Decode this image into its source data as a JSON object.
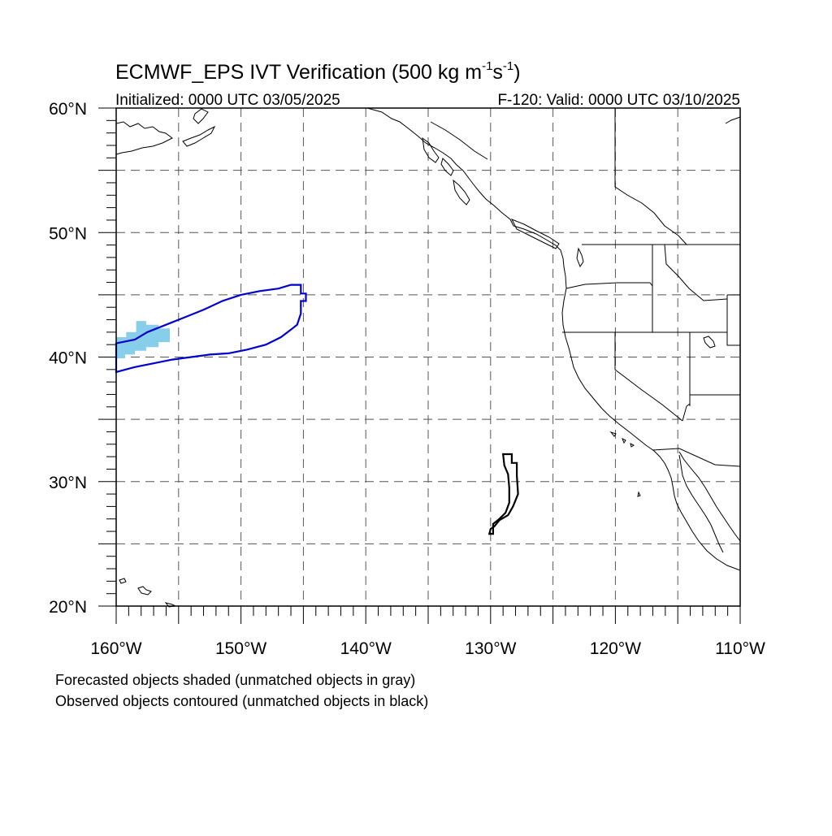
{
  "title": {
    "main": "ECMWF_EPS IVT Verification (500 kg m",
    "sup1": "-1",
    "mid": "s",
    "sup2": "-1",
    "end": ")"
  },
  "subtitle": {
    "left": "Initialized: 0000 UTC 03/05/2025",
    "right": "F-120: Valid: 0000 UTC 03/10/2025"
  },
  "footnotes": {
    "line1": "Forecasted objects shaded (unmatched objects in gray)",
    "line2": "Observed objects contoured (unmatched objects in black)"
  },
  "map": {
    "lon_range": [
      -160,
      -110
    ],
    "lat_range": [
      20,
      60
    ],
    "gridlines_lon": [
      -155,
      -150,
      -145,
      -140,
      -135,
      -130,
      -125,
      -120,
      -115
    ],
    "gridlines_lat": [
      25,
      30,
      35,
      40,
      45,
      50,
      55
    ],
    "x_ticks": [
      {
        "lon": -160,
        "label": "160°W"
      },
      {
        "lon": -150,
        "label": "150°W"
      },
      {
        "lon": -140,
        "label": "140°W"
      },
      {
        "lon": -130,
        "label": "130°W"
      },
      {
        "lon": -120,
        "label": "120°W"
      },
      {
        "lon": -110,
        "label": "110°W"
      }
    ],
    "y_ticks": [
      {
        "lat": 60,
        "label": "60°N"
      },
      {
        "lat": 50,
        "label": "50°N"
      },
      {
        "lat": 40,
        "label": "40°N"
      },
      {
        "lat": 30,
        "label": "30°N"
      },
      {
        "lat": 20,
        "label": "20°N"
      }
    ],
    "colors": {
      "forecast_matched_fill": "#87ceeb",
      "observed_matched_contour": "#0000cd",
      "observed_unmatched_contour": "#000000",
      "coastline": "#000000",
      "grid": "#555555"
    }
  },
  "objects": {
    "forecast_matched": {
      "color": "#87ceeb",
      "polygon": [
        [
          -160,
          39.9
        ],
        [
          -159.3,
          39.9
        ],
        [
          -159.3,
          40.2
        ],
        [
          -158.5,
          40.2
        ],
        [
          -158.5,
          40.5
        ],
        [
          -157.6,
          40.5
        ],
        [
          -157.6,
          40.8
        ],
        [
          -156.6,
          40.8
        ],
        [
          -156.6,
          41.2
        ],
        [
          -155.7,
          41.2
        ],
        [
          -155.7,
          42.3
        ],
        [
          -156.6,
          42.3
        ],
        [
          -156.6,
          42.6
        ],
        [
          -157.6,
          42.6
        ],
        [
          -157.6,
          42.9
        ],
        [
          -158.4,
          42.9
        ],
        [
          -158.4,
          42.0
        ],
        [
          -159.2,
          42.0
        ],
        [
          -159.2,
          41.6
        ],
        [
          -160,
          41.6
        ]
      ]
    },
    "observed_matched": {
      "color": "#0000cd",
      "polygon": [
        [
          -160,
          41.1
        ],
        [
          -158.5,
          41.4
        ],
        [
          -157.5,
          42.0
        ],
        [
          -156.0,
          42.6
        ],
        [
          -154.5,
          43.2
        ],
        [
          -153.0,
          43.8
        ],
        [
          -151.5,
          44.5
        ],
        [
          -150.0,
          45.0
        ],
        [
          -148.5,
          45.3
        ],
        [
          -147.0,
          45.5
        ],
        [
          -146.0,
          45.8
        ],
        [
          -145.2,
          45.8
        ],
        [
          -145.2,
          45.1
        ],
        [
          -144.8,
          45.1
        ],
        [
          -144.8,
          44.5
        ],
        [
          -145.2,
          44.5
        ],
        [
          -145.2,
          43.5
        ],
        [
          -145.5,
          42.6
        ],
        [
          -146.0,
          42.2
        ],
        [
          -146.8,
          41.6
        ],
        [
          -148.0,
          41.0
        ],
        [
          -149.5,
          40.6
        ],
        [
          -151.0,
          40.3
        ],
        [
          -152.5,
          40.2
        ],
        [
          -154.0,
          40.0
        ],
        [
          -155.5,
          39.8
        ],
        [
          -157.0,
          39.5
        ],
        [
          -158.5,
          39.2
        ],
        [
          -160,
          38.8
        ]
      ]
    },
    "observed_unmatched": {
      "color": "#000000",
      "polygon": [
        [
          -129.0,
          32.2
        ],
        [
          -128.3,
          32.2
        ],
        [
          -128.3,
          31.5
        ],
        [
          -127.9,
          31.5
        ],
        [
          -127.9,
          30.5
        ],
        [
          -127.8,
          29.0
        ],
        [
          -128.2,
          28.0
        ],
        [
          -128.6,
          27.3
        ],
        [
          -129.3,
          26.9
        ],
        [
          -129.7,
          26.4
        ],
        [
          -130.0,
          26.2
        ],
        [
          -130.1,
          25.8
        ],
        [
          -129.8,
          25.8
        ],
        [
          -129.8,
          26.6
        ],
        [
          -129.3,
          27.0
        ],
        [
          -128.8,
          27.5
        ],
        [
          -128.5,
          28.3
        ],
        [
          -128.5,
          29.5
        ],
        [
          -128.6,
          30.6
        ],
        [
          -128.9,
          31.3
        ],
        [
          -129.0,
          32.2
        ]
      ]
    }
  }
}
